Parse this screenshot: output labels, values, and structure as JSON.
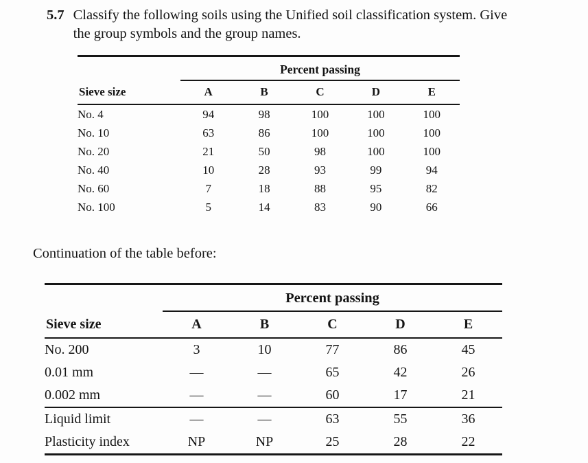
{
  "problem": {
    "number": "5.7",
    "line1": "Classify the following soils using the Unified soil classification system. Give",
    "line2": "the group symbols and the group names."
  },
  "continuation_text": "Continuation of the table before:",
  "table1": {
    "type": "table",
    "span_header": "Percent passing",
    "row_header": "Sieve size",
    "columns": [
      "A",
      "B",
      "C",
      "D",
      "E"
    ],
    "rows": [
      {
        "label": "No. 4",
        "values": [
          "94",
          "98",
          "100",
          "100",
          "100"
        ]
      },
      {
        "label": "No. 10",
        "values": [
          "63",
          "86",
          "100",
          "100",
          "100"
        ]
      },
      {
        "label": "No. 20",
        "values": [
          "21",
          "50",
          "98",
          "100",
          "100"
        ]
      },
      {
        "label": "No. 40",
        "values": [
          "10",
          "28",
          "93",
          "99",
          "94"
        ]
      },
      {
        "label": "No. 60",
        "values": [
          "7",
          "18",
          "88",
          "95",
          "82"
        ]
      },
      {
        "label": "No. 100",
        "values": [
          "5",
          "14",
          "83",
          "90",
          "66"
        ]
      }
    ]
  },
  "table2": {
    "type": "table",
    "span_header": "Percent passing",
    "row_header": "Sieve size",
    "columns": [
      "A",
      "B",
      "C",
      "D",
      "E"
    ],
    "rows": [
      {
        "label": "No. 200",
        "values": [
          "3",
          "10",
          "77",
          "86",
          "45"
        ]
      },
      {
        "label": "0.01 mm",
        "values": [
          "—",
          "—",
          "65",
          "42",
          "26"
        ]
      },
      {
        "label": "0.002 mm",
        "values": [
          "—",
          "—",
          "60",
          "17",
          "21"
        ]
      },
      {
        "label": "Liquid limit",
        "values": [
          "—",
          "—",
          "63",
          "55",
          "36"
        ],
        "section_break_above": true
      },
      {
        "label": "Plasticity index",
        "values": [
          "NP",
          "NP",
          "25",
          "28",
          "22"
        ]
      }
    ]
  }
}
